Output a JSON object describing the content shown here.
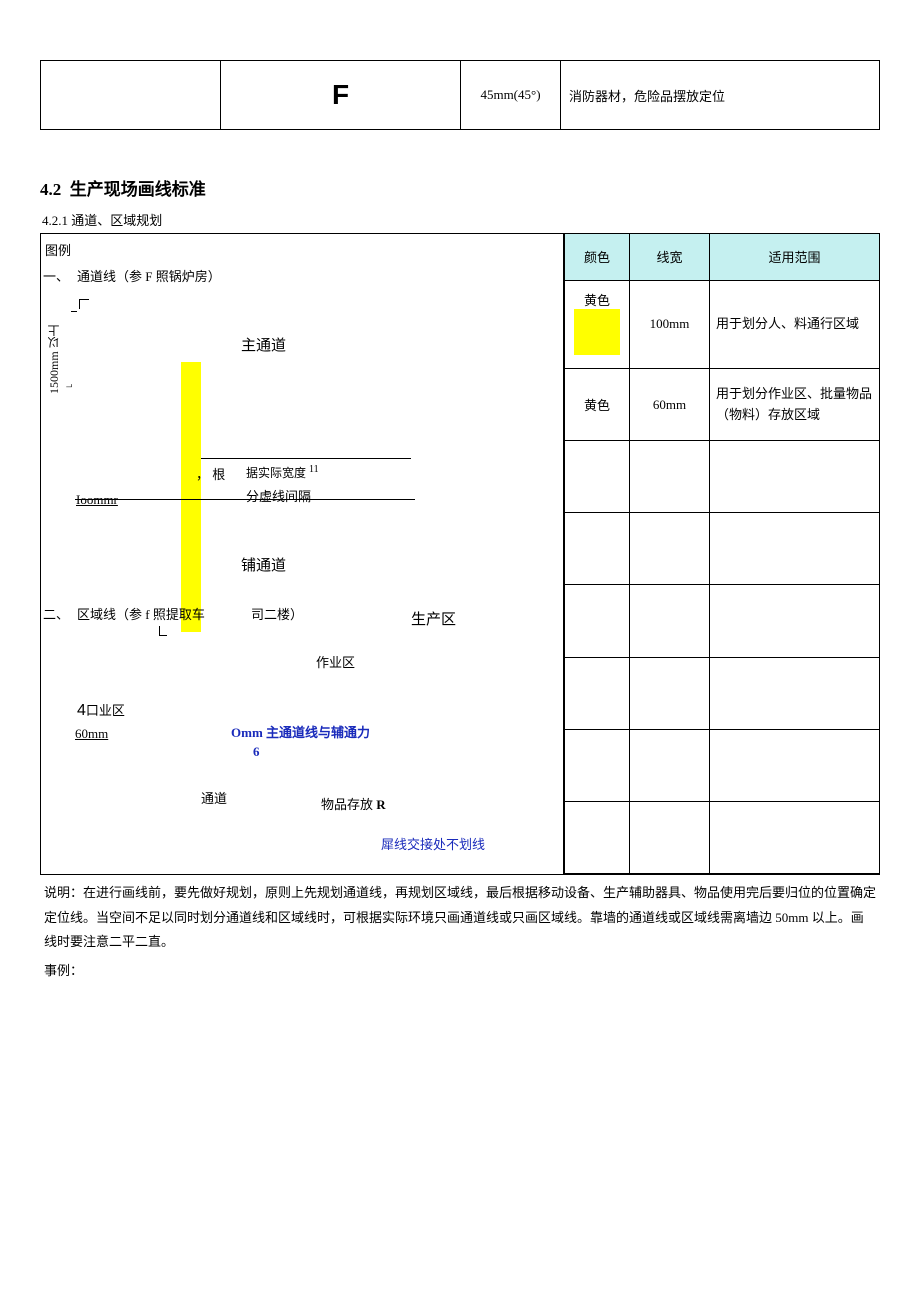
{
  "top_row": {
    "col1": "",
    "col2": "F",
    "col3": "45mm(45°)",
    "col4": "消防器材，危险品摆放定位"
  },
  "heading": {
    "num": "4.2",
    "title": "生产现场画线标准"
  },
  "subsection": "4.2.1 通道、区域规划",
  "diagram": {
    "tuli": "图例",
    "one_marker": "一、",
    "tongdaoxian_ref": "通道线（参 F 照锅炉房）",
    "vlabel": "1500mm 以上 ⌐",
    "zhutongdao": "主通道",
    "ioommr": "Ioommr",
    "comma_gen": "，  根",
    "ju_shi": "据实际宽度",
    "sup11": "11",
    "fenxu": "分虚线间隔",
    "putongdao": "铺通道",
    "two_marker": "二、",
    "quyuxian_ref": "区域线（参 f 照提取车",
    "silou": "司二楼）",
    "shengchanqu": "生产区",
    "zuoyequ": "作业区",
    "four_kouyequ_4": "4",
    "four_kouyequ_txt": "口业区",
    "sixty_mm": "60mm",
    "omm_text": "Omm 主通道线与辅通力",
    "six_text": "6",
    "tongdao2": "通道",
    "wupin": "物品存放 ",
    "wupin_r": "R",
    "yuxian": "犀线交接处不划线"
  },
  "right_table": {
    "header": {
      "color": "颜色",
      "width": "线宽",
      "scope": "适用范围"
    },
    "header_bg": "#c5f0f0",
    "rows": [
      {
        "color_label": "黄色",
        "swatch": "#ffff00",
        "show_swatch": true,
        "width": "100mm",
        "scope": "用于划分人、料通行区域"
      },
      {
        "color_label": "黄色",
        "swatch": "",
        "show_swatch": false,
        "width": "60mm",
        "scope": "用于划分作业区、批量物品（物料）存放区域"
      },
      {
        "color_label": "",
        "swatch": "",
        "show_swatch": false,
        "width": "",
        "scope": ""
      },
      {
        "color_label": "",
        "swatch": "",
        "show_swatch": false,
        "width": "",
        "scope": ""
      },
      {
        "color_label": "",
        "swatch": "",
        "show_swatch": false,
        "width": "",
        "scope": ""
      },
      {
        "color_label": "",
        "swatch": "",
        "show_swatch": false,
        "width": "",
        "scope": ""
      },
      {
        "color_label": "",
        "swatch": "",
        "show_swatch": false,
        "width": "",
        "scope": ""
      },
      {
        "color_label": "",
        "swatch": "",
        "show_swatch": false,
        "width": "",
        "scope": ""
      }
    ]
  },
  "shuoming": "说明：在进行画线前，要先做好规划，原则上先规划通道线，再规划区域线，最后根据移动设备、生产辅助器具、物品使用完后要归位的位置确定定位线。当空间不足以同时划分通道线和区域线时，可根据实际环境只画通道线或只画区域线。靠墙的通道线或区域线需离墙边 50mm 以上。画线时要注意二平二直。",
  "shili": "事例："
}
